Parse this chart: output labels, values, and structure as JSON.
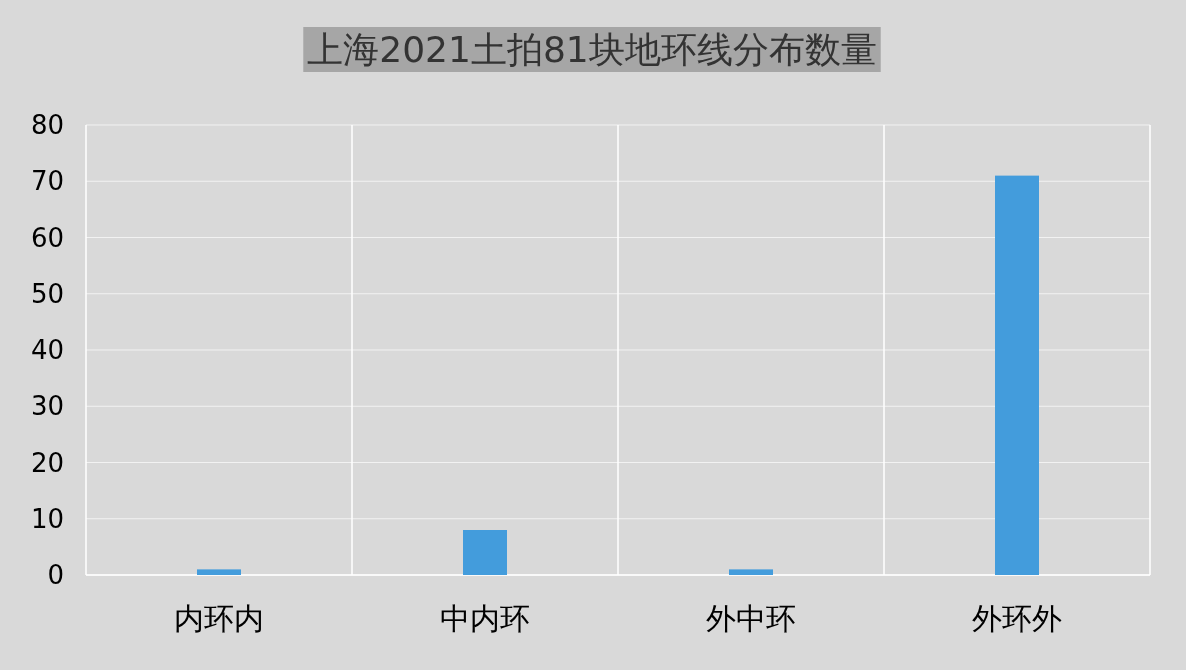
{
  "chart_data": {
    "type": "bar",
    "title": "上海2021土拍81块地环线分布数量",
    "categories": [
      "内环内",
      "中内环",
      "外中环",
      "外环外"
    ],
    "values": [
      1,
      8,
      1,
      71
    ],
    "color": "#439cdc",
    "ylim": [
      0,
      80
    ],
    "yticks": [
      0,
      10,
      20,
      30,
      40,
      50,
      60,
      70,
      80
    ],
    "grid": true
  }
}
